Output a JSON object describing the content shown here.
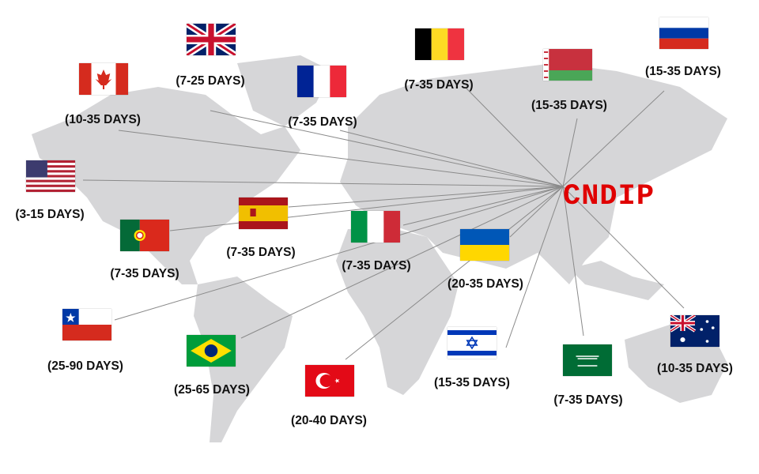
{
  "hub": {
    "label": "CNDIP",
    "color": "#e00000"
  },
  "map": {
    "land_color": "#d6d6d8",
    "line_color": "#8a8a8a"
  },
  "destinations": [
    {
      "country": "United Kingdom",
      "flag_icon": "uk-flag-icon",
      "days": "(7-25 DAYS)"
    },
    {
      "country": "Canada",
      "flag_icon": "canada-flag-icon",
      "days": "(10-35 DAYS)"
    },
    {
      "country": "France",
      "flag_icon": "france-flag-icon",
      "days": "(7-35 DAYS)"
    },
    {
      "country": "Belgium",
      "flag_icon": "belgium-flag-icon",
      "days": "(7-35 DAYS)"
    },
    {
      "country": "Belarus",
      "flag_icon": "belarus-flag-icon",
      "days": "(15-35 DAYS)"
    },
    {
      "country": "Russia",
      "flag_icon": "russia-flag-icon",
      "days": "(15-35 DAYS)"
    },
    {
      "country": "United States",
      "flag_icon": "usa-flag-icon",
      "days": "(3-15 DAYS)"
    },
    {
      "country": "Spain",
      "flag_icon": "spain-flag-icon",
      "days": "(7-35 DAYS)"
    },
    {
      "country": "Portugal",
      "flag_icon": "portugal-flag-icon",
      "days": "(7-35 DAYS)"
    },
    {
      "country": "Italy",
      "flag_icon": "italy-flag-icon",
      "days": "(7-35 DAYS)"
    },
    {
      "country": "Ukraine",
      "flag_icon": "ukraine-flag-icon",
      "days": "(20-35 DAYS)"
    },
    {
      "country": "Chile",
      "flag_icon": "chile-flag-icon",
      "days": "(25-90 DAYS)"
    },
    {
      "country": "Brazil",
      "flag_icon": "brazil-flag-icon",
      "days": "(25-65 DAYS)"
    },
    {
      "country": "Turkey",
      "flag_icon": "turkey-flag-icon",
      "days": "(20-40 DAYS)"
    },
    {
      "country": "Israel",
      "flag_icon": "israel-flag-icon",
      "days": "(15-35 DAYS)"
    },
    {
      "country": "Saudi Arabia",
      "flag_icon": "saudi-flag-icon",
      "days": "(7-35 DAYS)"
    },
    {
      "country": "Australia",
      "flag_icon": "australia-flag-icon",
      "days": "(10-35 DAYS)"
    }
  ]
}
